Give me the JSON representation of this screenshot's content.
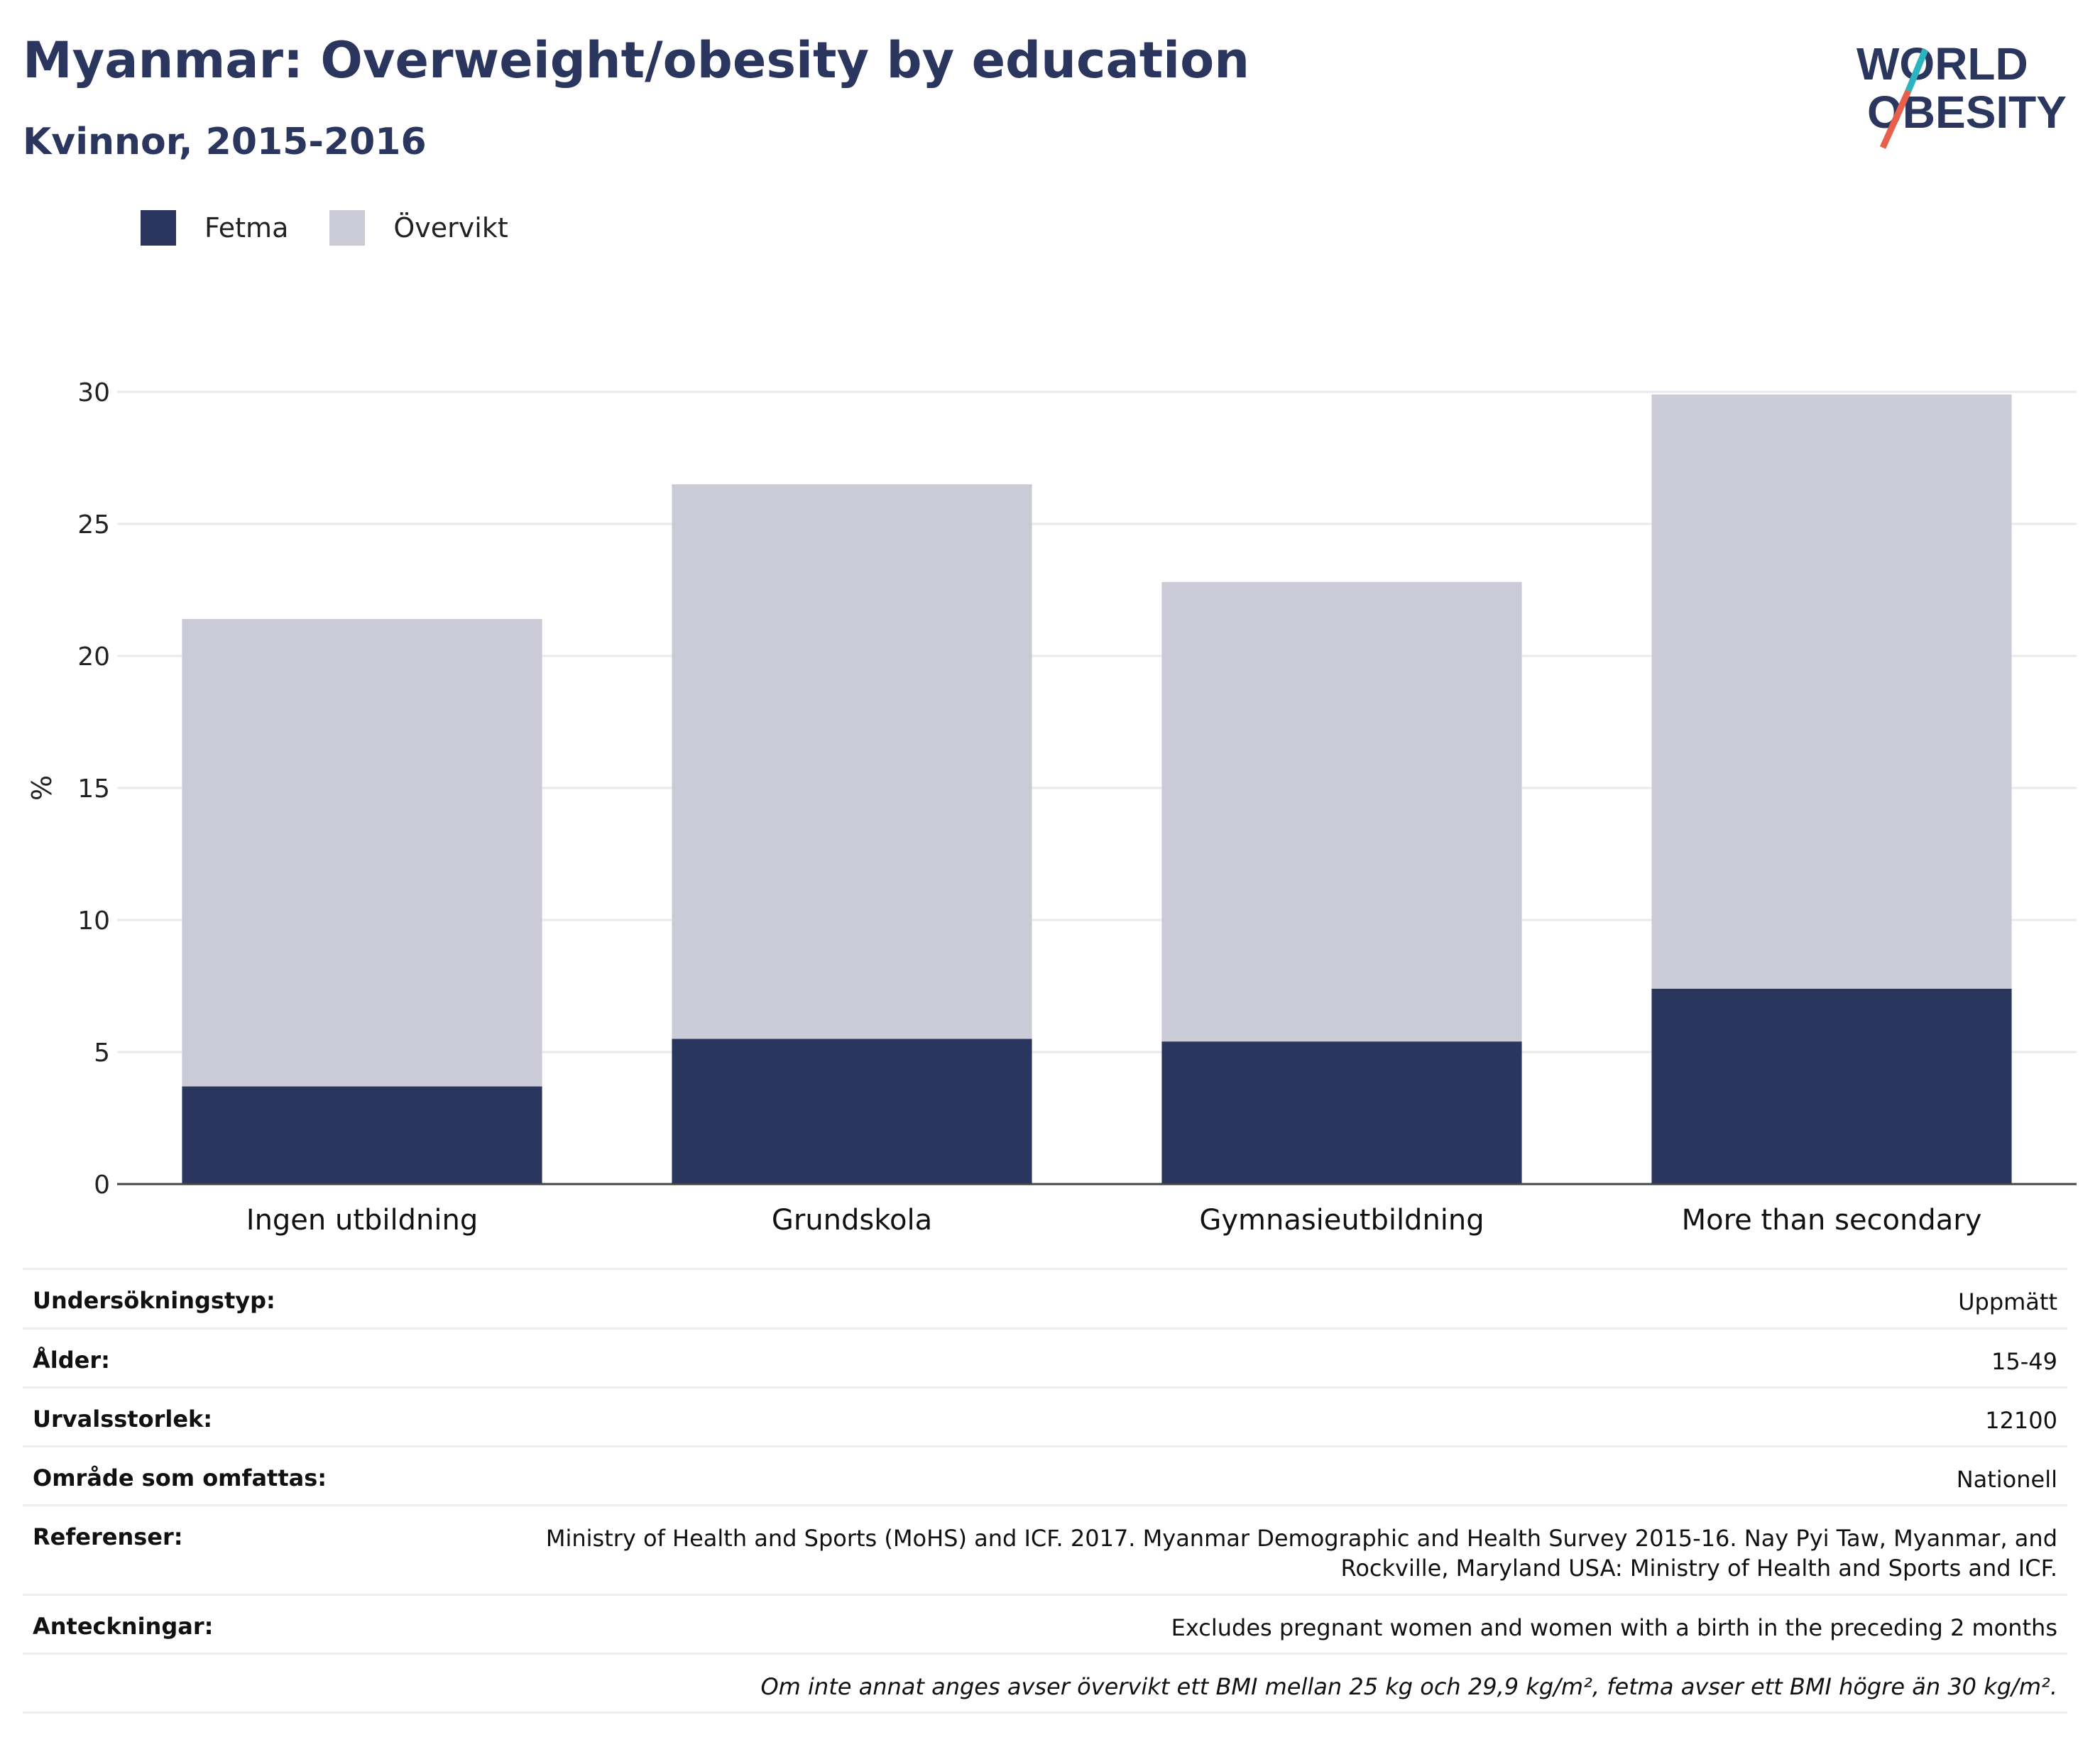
{
  "header": {
    "title": "Myanmar: Overweight/obesity by education",
    "subtitle": "Kvinnor, 2015-2016"
  },
  "logo": {
    "line1": "WORLD",
    "line2": "OBESITY",
    "colors": {
      "text": "#2b365f",
      "slash_top": "#2bb3c0",
      "slash_bottom": "#e8604c"
    }
  },
  "legend": [
    {
      "label": "Fetma",
      "color": "#2b365f"
    },
    {
      "label": "Övervikt",
      "color": "#cacbd7"
    }
  ],
  "chart_data": {
    "type": "bar",
    "stacked": true,
    "categories": [
      "Ingen utbildning",
      "Grundskola",
      "Gymnasieutbildning",
      "More than secondary"
    ],
    "series": [
      {
        "name": "Fetma",
        "color": "#2b365f",
        "values": [
          3.7,
          5.5,
          5.4,
          7.4
        ]
      },
      {
        "name": "Övervikt",
        "color": "#cacbd7",
        "values": [
          17.7,
          21.0,
          17.4,
          22.5
        ]
      }
    ],
    "totals": [
      21.4,
      26.5,
      22.8,
      29.9
    ],
    "ylabel": "%",
    "ylim": [
      0,
      30
    ],
    "yticks": [
      0,
      5,
      10,
      15,
      20,
      25,
      30
    ],
    "grid": true,
    "legend_position": "top-left"
  },
  "info": [
    {
      "key": "Undersökningstyp:",
      "value": "Uppmätt"
    },
    {
      "key": "Ålder:",
      "value": "15-49"
    },
    {
      "key": "Urvalsstorlek:",
      "value": "12100"
    },
    {
      "key": "Område som omfattas:",
      "value": "Nationell"
    },
    {
      "key": "Referenser:",
      "value": "Ministry of Health and Sports (MoHS) and ICF. 2017. Myanmar Demographic and Health Survey 2015-16. Nay Pyi Taw, Myanmar, and Rockville, Maryland USA: Ministry of Health and Sports and ICF."
    },
    {
      "key": "Anteckningar:",
      "value": "Excludes pregnant women and women with a birth in the preceding 2 months"
    }
  ],
  "footnote": "Om inte annat anges avser övervikt ett BMI mellan 25 kg och 29,9 kg/m², fetma avser ett BMI högre än 30 kg/m²."
}
